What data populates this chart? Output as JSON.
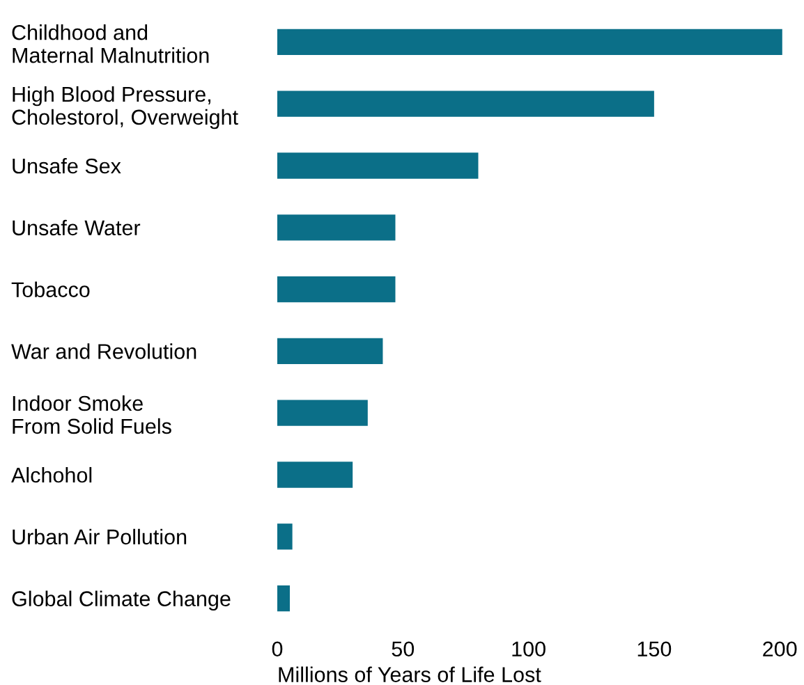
{
  "chart_data": {
    "type": "bar",
    "orientation": "horizontal",
    "xlabel": "Millions of Years of Life Lost",
    "categories": [
      "Childhood and\nMaternal Malnutrition",
      "High Blood Pressure,\nCholestorol, Overweight",
      "Unsafe Sex",
      "Unsafe Water",
      "Tobacco",
      "War and Revolution",
      "Indoor Smoke\nFrom Solid Fuels",
      "Alchohol",
      "Urban Air Pollution",
      "Global Climate Change"
    ],
    "values": [
      201,
      150,
      80,
      47,
      47,
      42,
      36,
      30,
      6,
      5
    ],
    "color": "#0b6f88",
    "xlim": [
      0,
      203
    ],
    "xticks": [
      0,
      50,
      100,
      150,
      200
    ],
    "grid": false,
    "legend": false
  }
}
